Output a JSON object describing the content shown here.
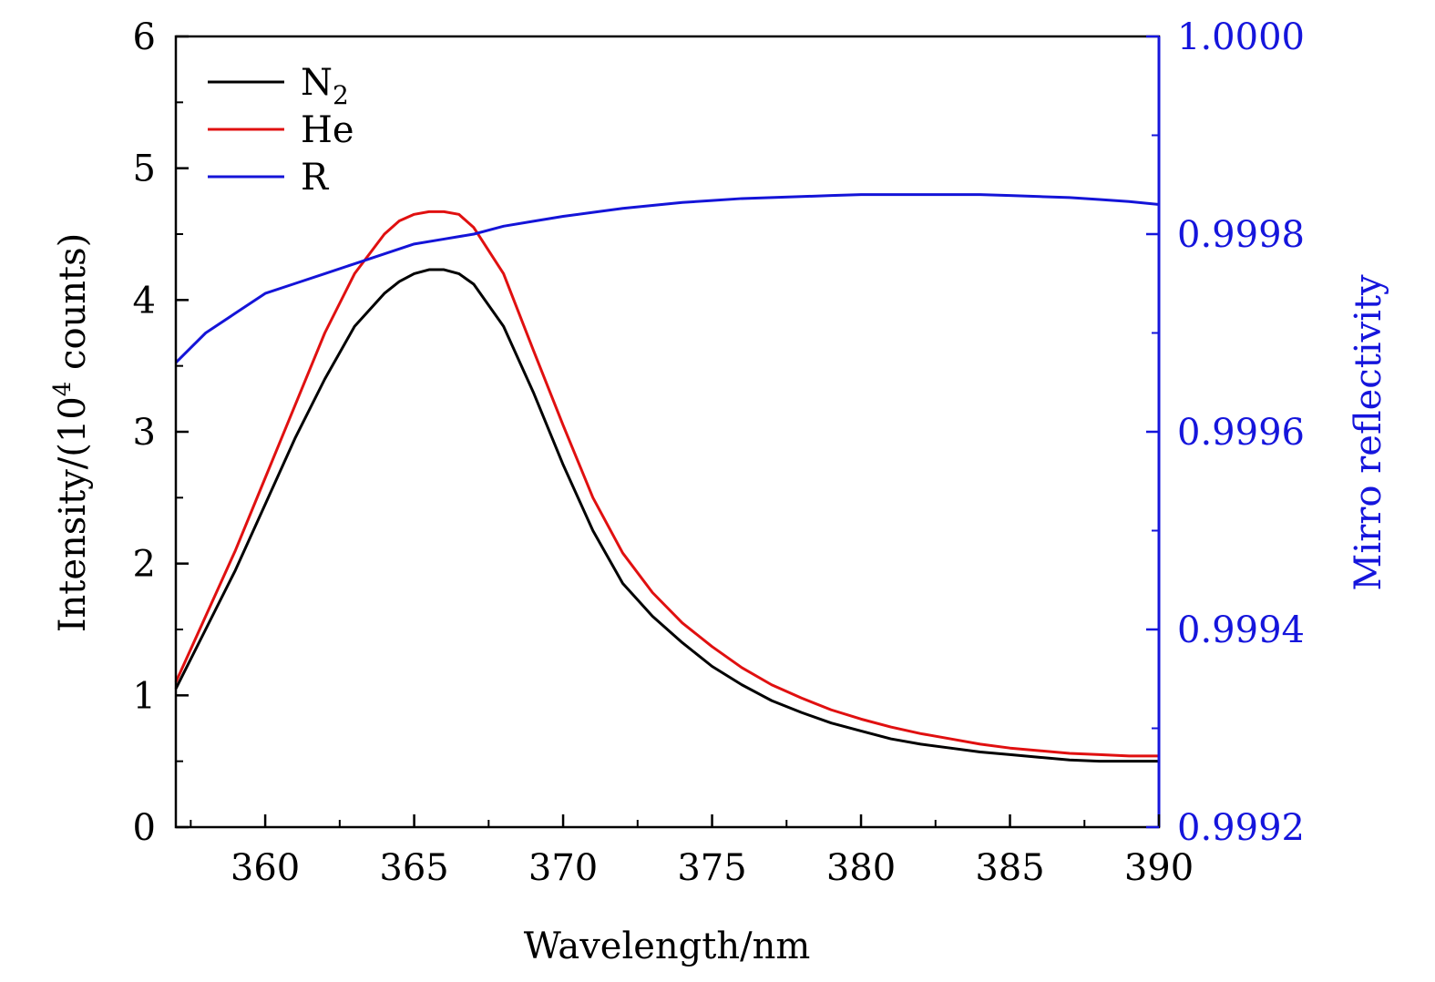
{
  "chart_data": {
    "type": "line",
    "xlabel": "Wavelength/nm",
    "ylabel": "Intensity/(10",
    "ylabel_sup": "4",
    "ylabel_tail": " counts)",
    "y2label": "Mirro reflectivity",
    "xlim": [
      357,
      390
    ],
    "ylim": [
      0,
      6
    ],
    "y2lim": [
      0.9992,
      1.0
    ],
    "xticks": [
      360,
      365,
      370,
      375,
      380,
      385,
      390
    ],
    "xtick_labels": [
      "360",
      "365",
      "370",
      "375",
      "380",
      "385",
      "390"
    ],
    "yticks": [
      0,
      1,
      2,
      3,
      4,
      5,
      6
    ],
    "ytick_labels": [
      "0",
      "1",
      "2",
      "3",
      "4",
      "5",
      "6"
    ],
    "y2ticks": [
      0.9992,
      0.9994,
      0.9996,
      0.9998,
      1.0
    ],
    "y2tick_labels": [
      "0.9992",
      "0.9994",
      "0.9996",
      "0.9998",
      "1.0000"
    ],
    "legend": {
      "position": "top-left",
      "entries": [
        {
          "label": "N",
          "sub": "2",
          "series": "N2"
        },
        {
          "label": "He",
          "sub": "",
          "series": "He"
        },
        {
          "label": "R",
          "sub": "",
          "series": "R"
        }
      ]
    },
    "series": [
      {
        "name": "N2",
        "axis": "left",
        "color": "#000000",
        "x": [
          357,
          358,
          359,
          360,
          361,
          362,
          363,
          364,
          364.5,
          365,
          365.5,
          366,
          366.5,
          367,
          368,
          369,
          370,
          371,
          372,
          373,
          374,
          375,
          376,
          377,
          378,
          379,
          380,
          381,
          382,
          383,
          384,
          385,
          386,
          387,
          388,
          389,
          390
        ],
        "y": [
          1.05,
          1.5,
          1.95,
          2.45,
          2.95,
          3.4,
          3.8,
          4.05,
          4.14,
          4.2,
          4.23,
          4.23,
          4.2,
          4.12,
          3.8,
          3.3,
          2.75,
          2.25,
          1.85,
          1.6,
          1.4,
          1.22,
          1.08,
          0.96,
          0.87,
          0.79,
          0.73,
          0.67,
          0.63,
          0.6,
          0.57,
          0.55,
          0.53,
          0.51,
          0.5,
          0.5,
          0.5
        ]
      },
      {
        "name": "He",
        "axis": "left",
        "color": "#e01010",
        "x": [
          357,
          358,
          359,
          360,
          361,
          362,
          363,
          364,
          364.5,
          365,
          365.5,
          366,
          366.5,
          367,
          368,
          369,
          370,
          371,
          372,
          373,
          374,
          375,
          376,
          377,
          378,
          379,
          380,
          381,
          382,
          383,
          384,
          385,
          386,
          387,
          388,
          389,
          390
        ],
        "y": [
          1.1,
          1.6,
          2.1,
          2.65,
          3.2,
          3.75,
          4.2,
          4.5,
          4.6,
          4.65,
          4.67,
          4.67,
          4.65,
          4.55,
          4.2,
          3.62,
          3.05,
          2.5,
          2.08,
          1.78,
          1.55,
          1.37,
          1.21,
          1.08,
          0.98,
          0.89,
          0.82,
          0.76,
          0.71,
          0.67,
          0.63,
          0.6,
          0.58,
          0.56,
          0.55,
          0.54,
          0.54
        ]
      },
      {
        "name": "R",
        "axis": "right",
        "color": "#1414d8",
        "x": [
          357,
          358,
          359,
          360,
          361,
          362,
          363,
          364,
          365,
          366,
          367,
          368,
          369,
          370,
          371,
          372,
          373,
          374,
          375,
          376,
          377,
          378,
          379,
          380,
          381,
          382,
          383,
          384,
          385,
          386,
          387,
          388,
          389,
          390
        ],
        "y": [
          0.99967,
          0.9997,
          0.99972,
          0.99974,
          0.99975,
          0.99976,
          0.99977,
          0.99978,
          0.99979,
          0.999795,
          0.9998,
          0.999808,
          0.999813,
          0.999818,
          0.999822,
          0.999826,
          0.999829,
          0.999832,
          0.999834,
          0.999836,
          0.999837,
          0.999838,
          0.999839,
          0.99984,
          0.99984,
          0.99984,
          0.99984,
          0.99984,
          0.999839,
          0.999838,
          0.999837,
          0.999835,
          0.999833,
          0.99983
        ]
      }
    ]
  }
}
